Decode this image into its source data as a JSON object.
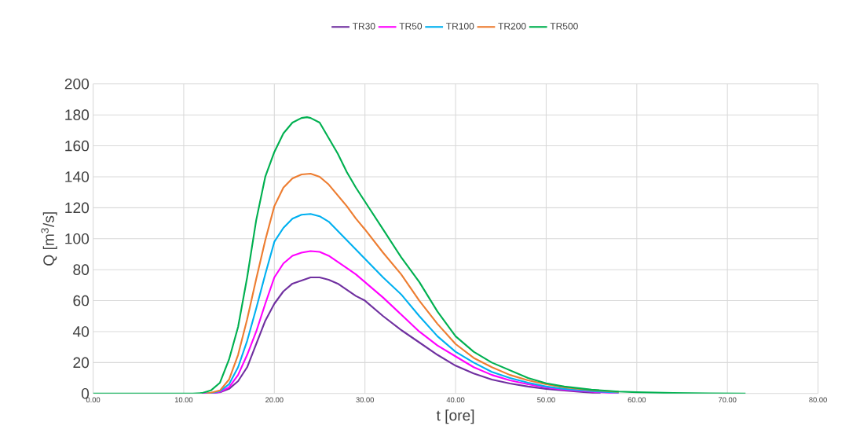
{
  "chart_data": {
    "type": "line",
    "xlabel": "t [ore]",
    "ylabel": "Q [m$^{3}$/s]",
    "xlim": [
      0,
      80
    ],
    "ylim": [
      0,
      200
    ],
    "xticks": [
      {
        "value": 0,
        "label": "0.00"
      },
      {
        "value": 10,
        "label": "10.00"
      },
      {
        "value": 20,
        "label": "20.00"
      },
      {
        "value": 30,
        "label": "30.00"
      },
      {
        "value": 40,
        "label": "40.00"
      },
      {
        "value": 50,
        "label": "50.00"
      },
      {
        "value": 60,
        "label": "60.00"
      },
      {
        "value": 70,
        "label": "70.00"
      },
      {
        "value": 80,
        "label": "80.00"
      }
    ],
    "yticks": [
      0,
      20,
      40,
      60,
      80,
      100,
      120,
      140,
      160,
      180,
      200
    ],
    "grid": true,
    "legend": "top",
    "marker": "none",
    "line_style": "solid",
    "series": [
      {
        "name": "TR30",
        "color": "#7030a0",
        "x": [
          12,
          13,
          14,
          15,
          16,
          17,
          18,
          19,
          20,
          21,
          22,
          23,
          24,
          25,
          26,
          27,
          28,
          29,
          30,
          32,
          34,
          36,
          38,
          40,
          42,
          44,
          46,
          48,
          50,
          52,
          56
        ],
        "values": [
          0,
          0.1,
          0.8,
          3,
          8,
          17,
          32,
          47,
          58,
          66,
          71,
          73,
          75,
          75,
          73.5,
          71,
          67,
          63,
          60,
          50,
          41,
          33,
          25,
          18,
          13,
          9,
          6.5,
          4.5,
          3,
          2,
          0
        ]
      },
      {
        "name": "TR50",
        "color": "#ff00ff",
        "x": [
          12,
          13,
          14,
          15,
          16,
          17,
          18,
          19,
          20,
          21,
          22,
          23,
          24,
          25,
          26,
          27,
          28,
          29,
          30,
          32,
          34,
          36,
          38,
          40,
          42,
          44,
          46,
          48,
          50,
          52,
          55,
          58
        ],
        "values": [
          0,
          0.2,
          1,
          4,
          12,
          25,
          40,
          58,
          75,
          84,
          89,
          91,
          92,
          91.5,
          89,
          85,
          81,
          77,
          72,
          62,
          51,
          40,
          31,
          24,
          17,
          12,
          8.5,
          6,
          4,
          2.5,
          1.2,
          0
        ]
      },
      {
        "name": "TR100",
        "color": "#00b0f0",
        "x": [
          12.5,
          13,
          14,
          15,
          16,
          17,
          18,
          19,
          20,
          21,
          22,
          23,
          24,
          25,
          26,
          27,
          28,
          29,
          30,
          32,
          34,
          36,
          38,
          40,
          42,
          44,
          46,
          48,
          50,
          52,
          55,
          58
        ],
        "values": [
          0,
          0.3,
          1.5,
          6,
          17,
          34,
          55,
          77,
          98,
          107,
          113,
          115.5,
          116,
          114.5,
          111,
          105,
          99,
          93,
          87,
          75,
          64,
          50,
          37,
          27,
          20,
          14,
          10,
          7,
          4.5,
          3,
          1.5,
          0.6
        ]
      },
      {
        "name": "TR200",
        "color": "#ed7d31",
        "x": [
          12.5,
          13,
          14,
          15,
          16,
          17,
          18,
          19,
          20,
          21,
          22,
          23,
          24,
          25,
          26,
          27,
          28,
          29,
          30,
          32,
          34,
          36,
          38,
          40,
          42,
          44,
          46,
          48,
          50,
          52,
          55,
          58
        ],
        "values": [
          0,
          0.5,
          2,
          9,
          25,
          48,
          74,
          99,
          121,
          133,
          139,
          141.5,
          142,
          140,
          135,
          128,
          121,
          113,
          106,
          91,
          77,
          60,
          45,
          32,
          23,
          17,
          12,
          8.5,
          6,
          4,
          2.2,
          1.1
        ]
      },
      {
        "name": "TR500",
        "color": "#00b050",
        "x": [
          0,
          10,
          11,
          12,
          13,
          14,
          15,
          16,
          17,
          18,
          19,
          20,
          21,
          22,
          23,
          23.6,
          24,
          25,
          26,
          27,
          28,
          29,
          30,
          32,
          34,
          36,
          38,
          40,
          42,
          44,
          46,
          48,
          50,
          52,
          55,
          58,
          60,
          64,
          68,
          72
        ],
        "values": [
          0,
          0,
          0,
          0.3,
          2,
          7,
          22,
          43,
          75,
          112,
          140,
          156,
          168,
          175,
          178,
          178.5,
          178,
          175,
          165,
          155,
          143,
          133,
          124,
          106,
          88,
          72,
          53,
          37,
          27,
          20,
          15,
          10,
          6.6,
          4.5,
          2.5,
          1.3,
          0.8,
          0.3,
          0.1,
          0
        ]
      }
    ]
  }
}
